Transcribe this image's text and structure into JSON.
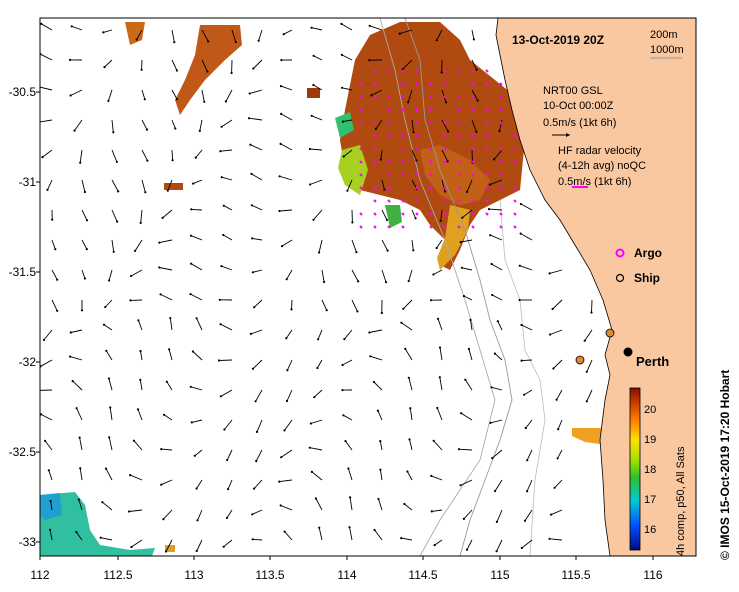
{
  "map": {
    "date_title": "13-Oct-2019 20Z",
    "lon_ticks": [
      "112",
      "112.5",
      "113",
      "113.5",
      "114",
      "114.5",
      "115",
      "115.5",
      "116"
    ],
    "lat_ticks": [
      "-30.5",
      "-31",
      "-31.5",
      "-32",
      "-32.5",
      "-33"
    ],
    "lon_range": [
      112.0,
      116.3
    ],
    "lat_range": [
      -33.1,
      -30.1
    ],
    "contours": {
      "c200": "200m",
      "c1000": "1000m"
    },
    "legend": {
      "model_name": "NRT00 GSL",
      "model_time": "10-Oct 00:00Z",
      "model_scale": "0.5m/s (1kt 6h)",
      "hf_title_1": "HF radar velocity",
      "hf_title_2": "(4-12h avg) noQC",
      "hf_scale": "0.5m/s (1kt 6h)",
      "argo_label": "Argo",
      "ship_label": "Ship"
    },
    "place_label": "Perth",
    "credit": "© IMOS 15-Oct-2019 17:20 Hobart",
    "colorbar": {
      "ticks": [
        "20",
        "19",
        "18",
        "17",
        "16"
      ],
      "caption": "4h comp, p50, All Sats",
      "range": [
        15.3,
        20.7
      ]
    },
    "colors": {
      "land": "#fac8a0",
      "arrow": "#000000",
      "radar": "#ff00ff",
      "grid": "#cccccc"
    }
  }
}
